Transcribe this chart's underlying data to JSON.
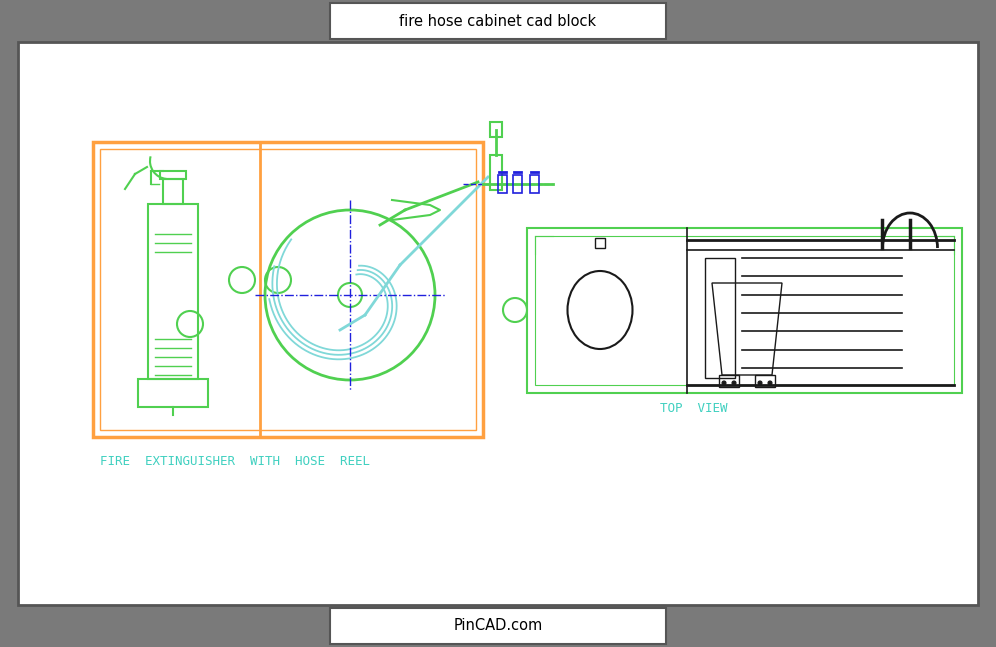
{
  "title": "fire hose cabinet cad block",
  "footer": "PinCAD.com",
  "bg_color": "#7a7a7a",
  "inner_bg": "#ffffff",
  "orange": "#FFA040",
  "green": "#50D050",
  "cyan_label": "#40D0C0",
  "dark": "#1a1a1a",
  "blue": "#2020DD",
  "hose_cyan": "#80D8D8",
  "label_front": "FIRE  EXTINGUISHER  WITH  HOSE  REEL",
  "label_top": "TOP  VIEW"
}
